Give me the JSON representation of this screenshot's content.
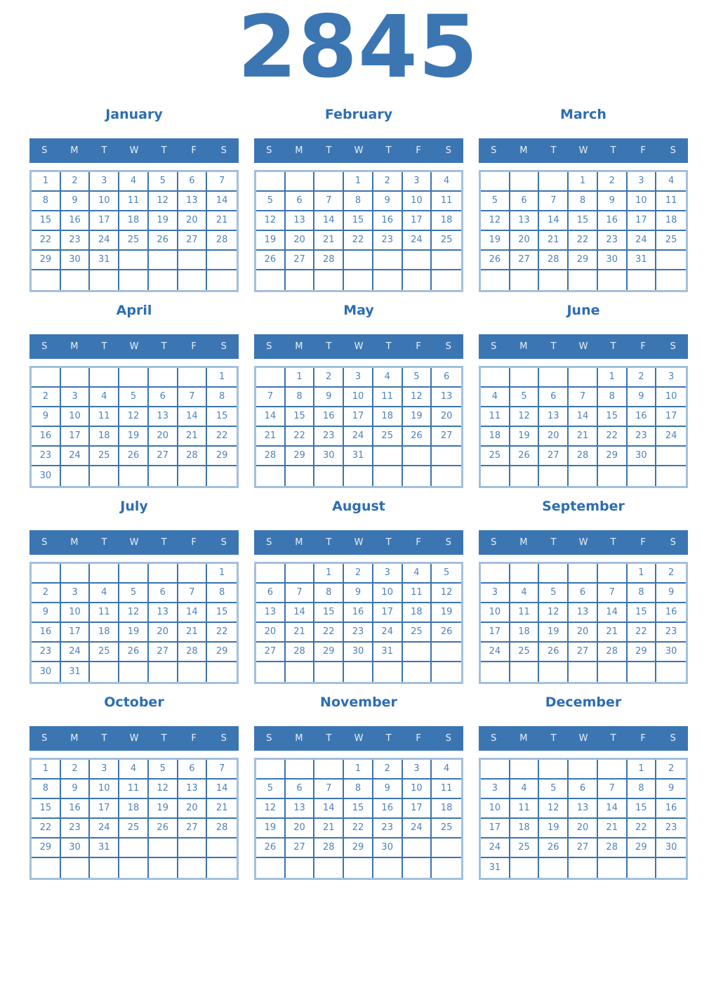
{
  "year": "2845",
  "weekdays": [
    "S",
    "M",
    "T",
    "W",
    "T",
    "F",
    "S"
  ],
  "colors": {
    "header_bg": "#3b76b3",
    "header_text": "#e9f1fa",
    "month_title": "#2d6db3",
    "year_title": "#3b76b3",
    "day_number": "#4c82bd",
    "inner_border": "#3c74ae",
    "outer_border": "#a2c0de",
    "page_bg": "#ffffff"
  },
  "months": [
    {
      "name": "January",
      "weeks": [
        [
          "1",
          "2",
          "3",
          "4",
          "5",
          "6",
          "7"
        ],
        [
          "8",
          "9",
          "10",
          "11",
          "12",
          "13",
          "14"
        ],
        [
          "15",
          "16",
          "17",
          "18",
          "19",
          "20",
          "21"
        ],
        [
          "22",
          "23",
          "24",
          "25",
          "26",
          "27",
          "28"
        ],
        [
          "29",
          "30",
          "31",
          "",
          "",
          "",
          ""
        ],
        [
          "",
          "",
          "",
          "",
          "",
          "",
          ""
        ]
      ]
    },
    {
      "name": "February",
      "weeks": [
        [
          "",
          "",
          "",
          "1",
          "2",
          "3",
          "4"
        ],
        [
          "5",
          "6",
          "7",
          "8",
          "9",
          "10",
          "11"
        ],
        [
          "12",
          "13",
          "14",
          "15",
          "16",
          "17",
          "18"
        ],
        [
          "19",
          "20",
          "21",
          "22",
          "23",
          "24",
          "25"
        ],
        [
          "26",
          "27",
          "28",
          "",
          "",
          "",
          ""
        ],
        [
          "",
          "",
          "",
          "",
          "",
          "",
          ""
        ]
      ]
    },
    {
      "name": "March",
      "weeks": [
        [
          "",
          "",
          "",
          "1",
          "2",
          "3",
          "4"
        ],
        [
          "5",
          "6",
          "7",
          "8",
          "9",
          "10",
          "11"
        ],
        [
          "12",
          "13",
          "14",
          "15",
          "16",
          "17",
          "18"
        ],
        [
          "19",
          "20",
          "21",
          "22",
          "23",
          "24",
          "25"
        ],
        [
          "26",
          "27",
          "28",
          "29",
          "30",
          "31",
          ""
        ],
        [
          "",
          "",
          "",
          "",
          "",
          "",
          ""
        ]
      ]
    },
    {
      "name": "April",
      "weeks": [
        [
          "",
          "",
          "",
          "",
          "",
          "",
          "1"
        ],
        [
          "2",
          "3",
          "4",
          "5",
          "6",
          "7",
          "8"
        ],
        [
          "9",
          "10",
          "11",
          "12",
          "13",
          "14",
          "15"
        ],
        [
          "16",
          "17",
          "18",
          "19",
          "20",
          "21",
          "22"
        ],
        [
          "23",
          "24",
          "25",
          "26",
          "27",
          "28",
          "29"
        ],
        [
          "30",
          "",
          "",
          "",
          "",
          "",
          ""
        ]
      ]
    },
    {
      "name": "May",
      "weeks": [
        [
          "",
          "1",
          "2",
          "3",
          "4",
          "5",
          "6"
        ],
        [
          "7",
          "8",
          "9",
          "10",
          "11",
          "12",
          "13"
        ],
        [
          "14",
          "15",
          "16",
          "17",
          "18",
          "19",
          "20"
        ],
        [
          "21",
          "22",
          "23",
          "24",
          "25",
          "26",
          "27"
        ],
        [
          "28",
          "29",
          "30",
          "31",
          "",
          "",
          ""
        ],
        [
          "",
          "",
          "",
          "",
          "",
          "",
          ""
        ]
      ]
    },
    {
      "name": "June",
      "weeks": [
        [
          "",
          "",
          "",
          "",
          "1",
          "2",
          "3"
        ],
        [
          "4",
          "5",
          "6",
          "7",
          "8",
          "9",
          "10"
        ],
        [
          "11",
          "12",
          "13",
          "14",
          "15",
          "16",
          "17"
        ],
        [
          "18",
          "19",
          "20",
          "21",
          "22",
          "23",
          "24"
        ],
        [
          "25",
          "26",
          "27",
          "28",
          "29",
          "30",
          ""
        ],
        [
          "",
          "",
          "",
          "",
          "",
          "",
          ""
        ]
      ]
    },
    {
      "name": "July",
      "weeks": [
        [
          "",
          "",
          "",
          "",
          "",
          "",
          "1"
        ],
        [
          "2",
          "3",
          "4",
          "5",
          "6",
          "7",
          "8"
        ],
        [
          "9",
          "10",
          "11",
          "12",
          "13",
          "14",
          "15"
        ],
        [
          "16",
          "17",
          "18",
          "19",
          "20",
          "21",
          "22"
        ],
        [
          "23",
          "24",
          "25",
          "26",
          "27",
          "28",
          "29"
        ],
        [
          "30",
          "31",
          "",
          "",
          "",
          "",
          ""
        ]
      ]
    },
    {
      "name": "August",
      "weeks": [
        [
          "",
          "",
          "1",
          "2",
          "3",
          "4",
          "5"
        ],
        [
          "6",
          "7",
          "8",
          "9",
          "10",
          "11",
          "12"
        ],
        [
          "13",
          "14",
          "15",
          "16",
          "17",
          "18",
          "19"
        ],
        [
          "20",
          "21",
          "22",
          "23",
          "24",
          "25",
          "26"
        ],
        [
          "27",
          "28",
          "29",
          "30",
          "31",
          "",
          ""
        ],
        [
          "",
          "",
          "",
          "",
          "",
          "",
          ""
        ]
      ]
    },
    {
      "name": "September",
      "weeks": [
        [
          "",
          "",
          "",
          "",
          "",
          "1",
          "2"
        ],
        [
          "3",
          "4",
          "5",
          "6",
          "7",
          "8",
          "9"
        ],
        [
          "10",
          "11",
          "12",
          "13",
          "14",
          "15",
          "16"
        ],
        [
          "17",
          "18",
          "19",
          "20",
          "21",
          "22",
          "23"
        ],
        [
          "24",
          "25",
          "26",
          "27",
          "28",
          "29",
          "30"
        ],
        [
          "",
          "",
          "",
          "",
          "",
          "",
          ""
        ]
      ]
    },
    {
      "name": "October",
      "weeks": [
        [
          "1",
          "2",
          "3",
          "4",
          "5",
          "6",
          "7"
        ],
        [
          "8",
          "9",
          "10",
          "11",
          "12",
          "13",
          "14"
        ],
        [
          "15",
          "16",
          "17",
          "18",
          "19",
          "20",
          "21"
        ],
        [
          "22",
          "23",
          "24",
          "25",
          "26",
          "27",
          "28"
        ],
        [
          "29",
          "30",
          "31",
          "",
          "",
          "",
          ""
        ],
        [
          "",
          "",
          "",
          "",
          "",
          "",
          ""
        ]
      ]
    },
    {
      "name": "November",
      "weeks": [
        [
          "",
          "",
          "",
          "1",
          "2",
          "3",
          "4"
        ],
        [
          "5",
          "6",
          "7",
          "8",
          "9",
          "10",
          "11"
        ],
        [
          "12",
          "13",
          "14",
          "15",
          "16",
          "17",
          "18"
        ],
        [
          "19",
          "20",
          "21",
          "22",
          "23",
          "24",
          "25"
        ],
        [
          "26",
          "27",
          "28",
          "29",
          "30",
          "",
          ""
        ],
        [
          "",
          "",
          "",
          "",
          "",
          "",
          ""
        ]
      ]
    },
    {
      "name": "December",
      "weeks": [
        [
          "",
          "",
          "",
          "",
          "",
          "1",
          "2"
        ],
        [
          "3",
          "4",
          "5",
          "6",
          "7",
          "8",
          "9"
        ],
        [
          "10",
          "11",
          "12",
          "13",
          "14",
          "15",
          "16"
        ],
        [
          "17",
          "18",
          "19",
          "20",
          "21",
          "22",
          "23"
        ],
        [
          "24",
          "25",
          "26",
          "27",
          "28",
          "29",
          "30"
        ],
        [
          "31",
          "",
          "",
          "",
          "",
          "",
          ""
        ]
      ]
    }
  ]
}
